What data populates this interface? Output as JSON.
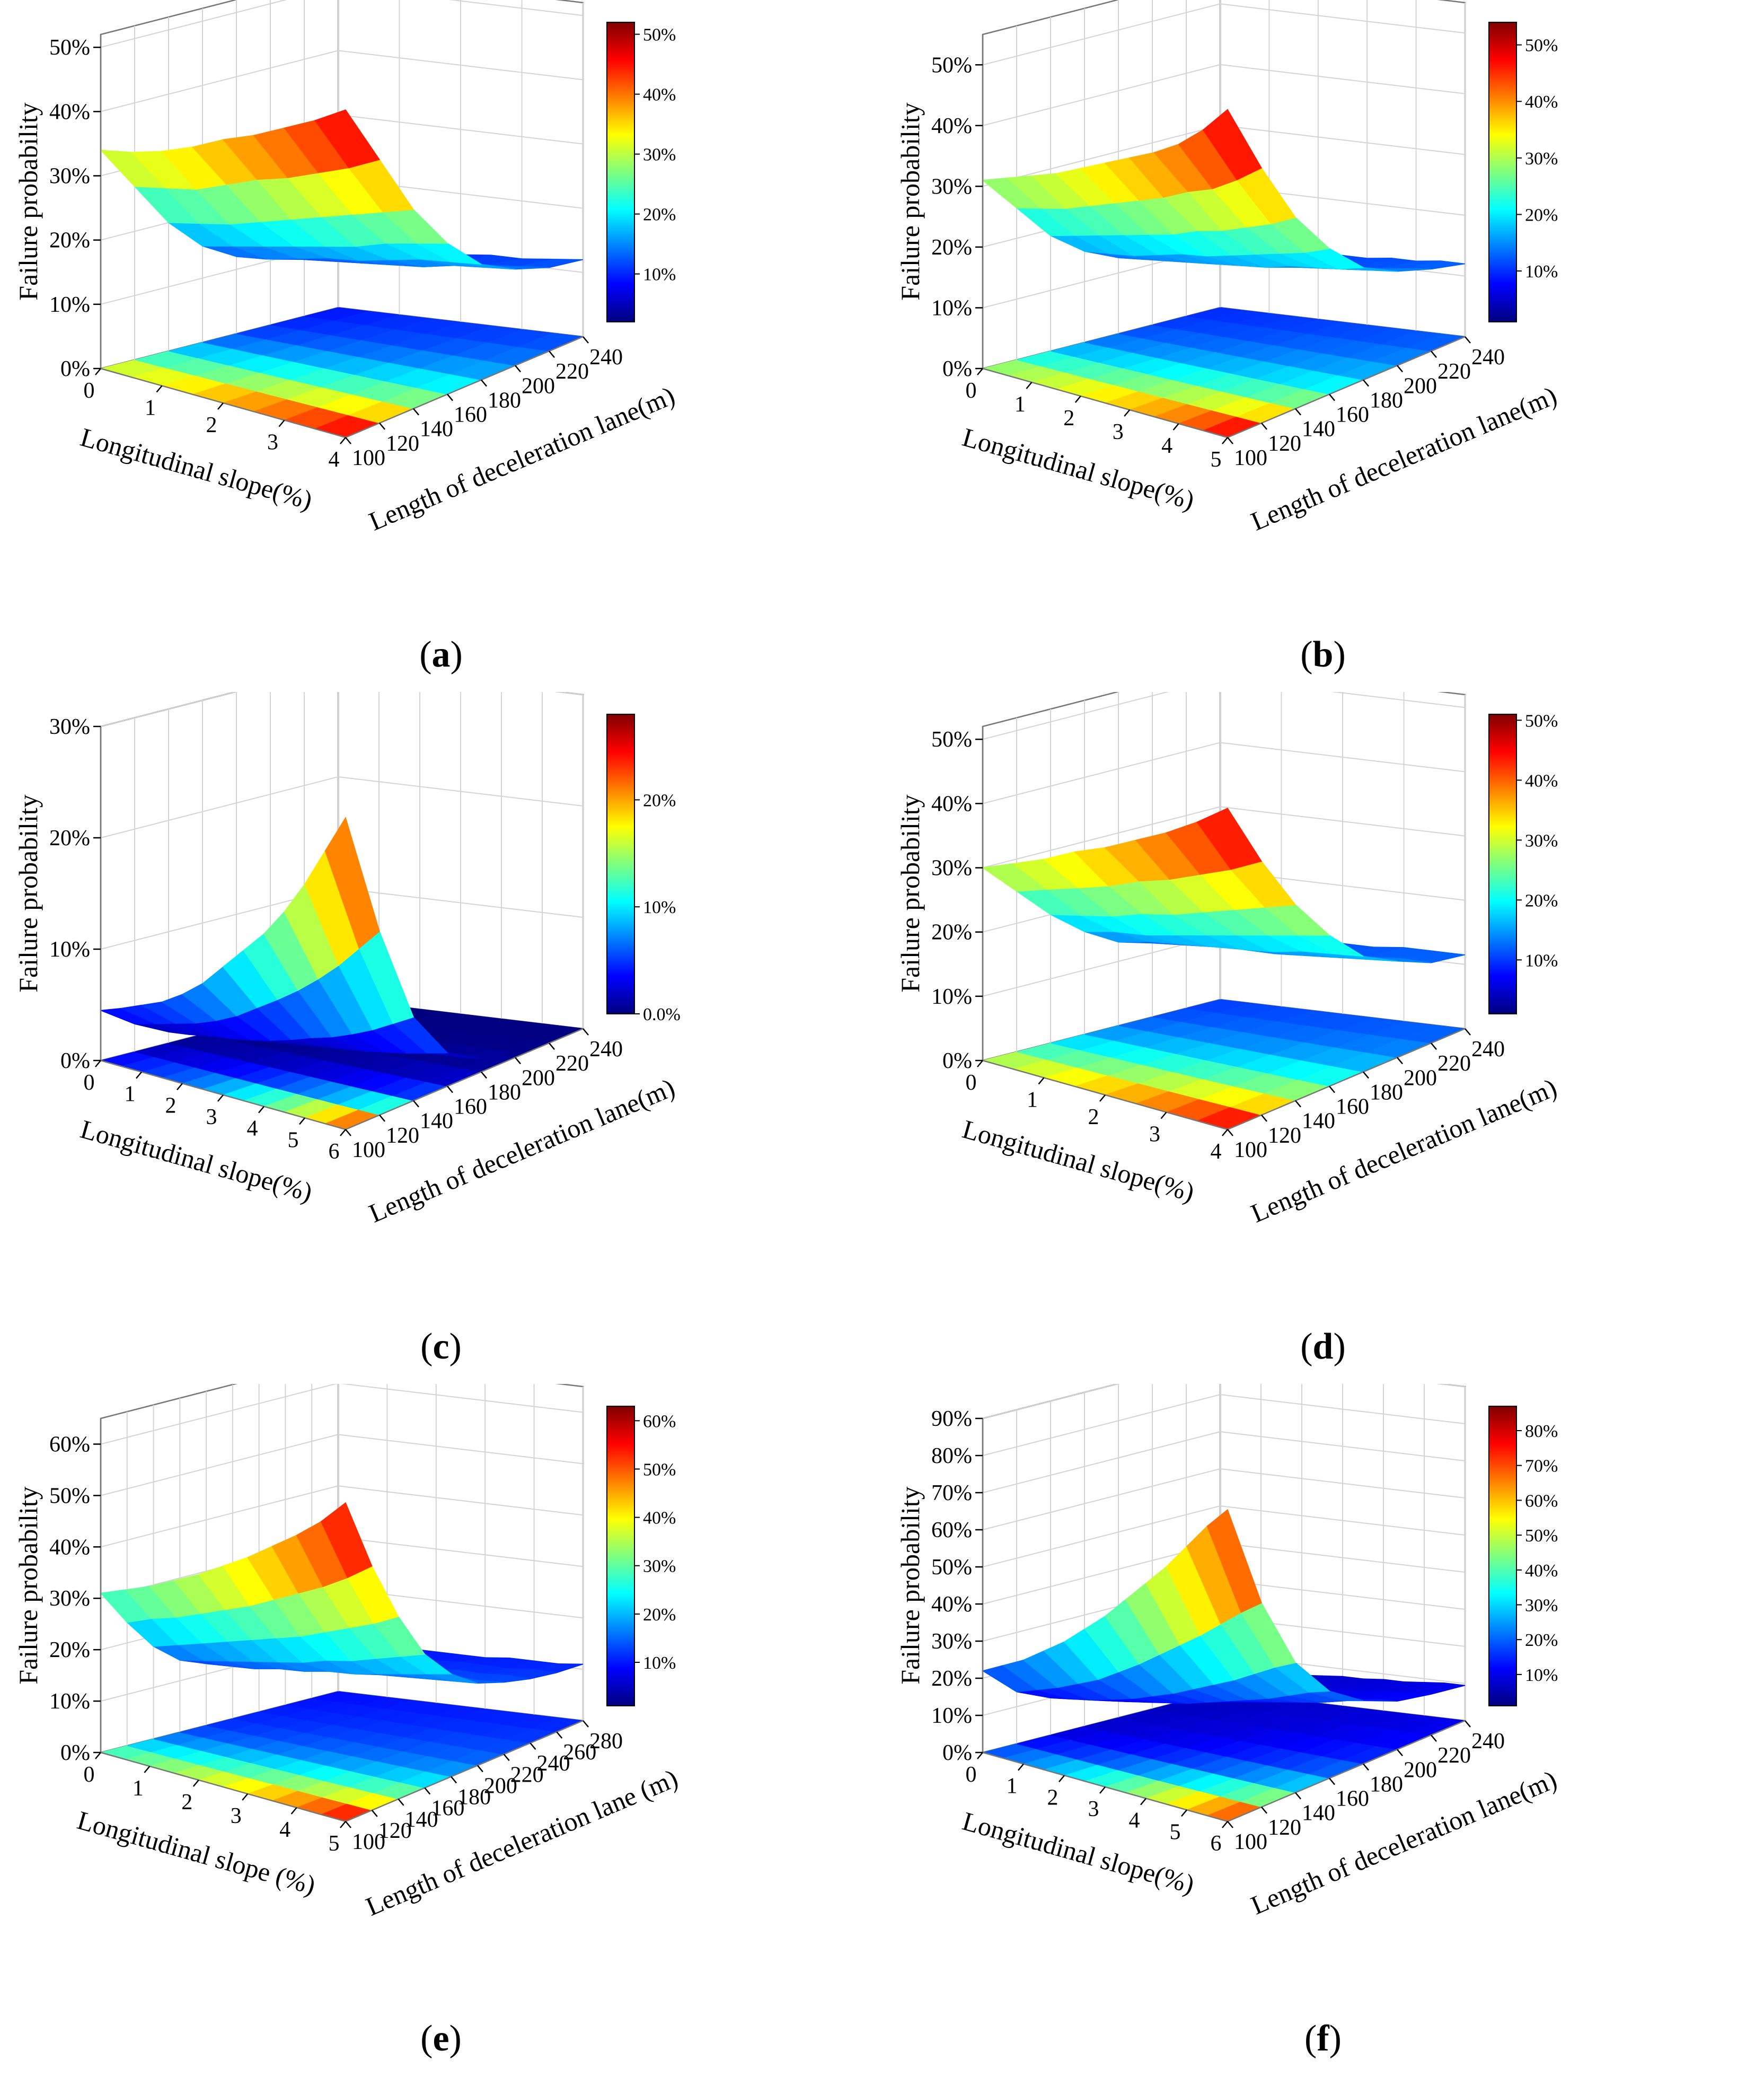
{
  "colors": {
    "colormap": [
      "#00007f",
      "#0000ff",
      "#007fff",
      "#00ffff",
      "#7fff7f",
      "#ffff00",
      "#ff7f00",
      "#ff0000",
      "#7f0000"
    ]
  },
  "chart_data": [
    {
      "type": "surface3d",
      "caption": "a",
      "zlabel": "Failure probability",
      "xlabel": "Longitudinal slope(%)",
      "ylabel": "Length of deceleration lane(m)",
      "slope_ticks": [
        "0",
        "1",
        "2",
        "3",
        "4"
      ],
      "length_ticks": [
        "100",
        "120",
        "140",
        "160",
        "180",
        "200",
        "220",
        "240"
      ],
      "z_ticks": [
        "0%",
        "10%",
        "20%",
        "30%",
        "40%",
        "50%"
      ],
      "zlim": [
        0,
        52
      ],
      "colorbar_ticks": [
        "10%",
        "20%",
        "30%",
        "40%",
        "50%"
      ],
      "colorbar_range": [
        2,
        52
      ],
      "slopes": [
        0,
        0.5,
        1,
        1.5,
        2,
        2.5,
        3,
        3.5,
        4
      ],
      "lengths": [
        100,
        120,
        140,
        160,
        180,
        200,
        220,
        240
      ],
      "z": [
        [
          34,
          27,
          20,
          15,
          12,
          10.5,
          9.5,
          9
        ],
        [
          35,
          28,
          21,
          16,
          12.5,
          11,
          10,
          9.5
        ],
        [
          36.5,
          29,
          22,
          17,
          13.5,
          11.5,
          10.5,
          10
        ],
        [
          38.5,
          31,
          23.5,
          18,
          14.5,
          12,
          11,
          10.5
        ],
        [
          41,
          33,
          25,
          19,
          15,
          12.5,
          11,
          10.5
        ],
        [
          43,
          34.5,
          26.5,
          20,
          16,
          13,
          11.5,
          11
        ],
        [
          45.5,
          36.5,
          28,
          21.5,
          17,
          14,
          12,
          11
        ],
        [
          48,
          38.5,
          29.5,
          22.5,
          17.5,
          14.5,
          12.5,
          11.5
        ],
        [
          51,
          41,
          31,
          23.5,
          18,
          15,
          13,
          12
        ]
      ]
    },
    {
      "type": "surface3d",
      "caption": "b",
      "zlabel": "Failure probability",
      "xlabel": "Longitudinal slope(%)",
      "ylabel": "Length of deceleration lane(m)",
      "slope_ticks": [
        "0",
        "1",
        "2",
        "3",
        "4",
        "5"
      ],
      "length_ticks": [
        "100",
        "120",
        "140",
        "160",
        "180",
        "200",
        "220",
        "240"
      ],
      "z_ticks": [
        "0%",
        "10%",
        "20%",
        "30%",
        "40%",
        "50%"
      ],
      "zlim": [
        0,
        55
      ],
      "colorbar_ticks": [
        "10%",
        "20%",
        "30%",
        "40%",
        "50%"
      ],
      "colorbar_range": [
        1,
        54
      ],
      "slopes": [
        0,
        0.5,
        1,
        1.5,
        2,
        2.5,
        3,
        3.5,
        4,
        4.5,
        5
      ],
      "lengths": [
        100,
        120,
        140,
        160,
        180,
        200,
        220,
        240
      ],
      "z": [
        [
          31,
          25,
          19,
          15,
          12.5,
          11,
          10,
          9.5
        ],
        [
          32.5,
          26,
          20,
          15.5,
          13,
          11.5,
          10.5,
          10
        ],
        [
          34,
          27,
          21,
          16,
          13.5,
          12,
          10.5,
          10
        ],
        [
          35.5,
          28.5,
          22,
          17,
          14,
          12,
          11,
          10.5
        ],
        [
          37.5,
          30,
          23,
          18,
          14.5,
          12.5,
          11,
          10.5
        ],
        [
          39.5,
          31.5,
          24,
          18.5,
          15,
          13,
          11.5,
          11
        ],
        [
          41.5,
          33,
          25.5,
          19.5,
          15.5,
          13.5,
          12,
          11
        ],
        [
          43.5,
          35,
          26.5,
          20.5,
          16.5,
          14,
          12,
          11.5
        ],
        [
          46,
          36.5,
          28,
          21.5,
          17,
          14.5,
          12.5,
          11.5
        ],
        [
          49.5,
          39,
          29.5,
          22.5,
          17.5,
          15,
          13,
          12
        ],
        [
          54,
          42,
          31.5,
          24,
          18.5,
          15.5,
          13.5,
          12
        ]
      ]
    },
    {
      "type": "surface3d",
      "caption": "c",
      "zlabel": "Failure probability",
      "xlabel": "Longitudinal slope(%)",
      "ylabel": "Length of deceleration lane(m)",
      "slope_ticks": [
        "0",
        "1",
        "2",
        "3",
        "4",
        "5",
        "6"
      ],
      "length_ticks": [
        "100",
        "120",
        "140",
        "160",
        "180",
        "200",
        "220",
        "240"
      ],
      "z_ticks": [
        "0%",
        "10%",
        "20%",
        "30%"
      ],
      "zlim": [
        0,
        30
      ],
      "colorbar_ticks": [
        "0.0%",
        "10%",
        "20%"
      ],
      "colorbar_range": [
        0,
        28
      ],
      "slopes": [
        0,
        0.5,
        1,
        1.5,
        2,
        2.5,
        3,
        3.5,
        4,
        4.5,
        5,
        5.5,
        6
      ],
      "lengths": [
        100,
        120,
        140,
        160,
        180,
        200,
        220,
        240
      ],
      "z": [
        [
          4.5,
          2.5,
          1,
          0.4,
          0.2,
          0.1,
          0,
          0
        ],
        [
          5.2,
          3,
          1.2,
          0.5,
          0.2,
          0.1,
          0,
          0
        ],
        [
          6,
          3.5,
          1.5,
          0.6,
          0.2,
          0.1,
          0,
          0
        ],
        [
          6.8,
          4,
          1.7,
          0.7,
          0.3,
          0.1,
          0,
          0
        ],
        [
          8,
          4.7,
          2,
          0.8,
          0.3,
          0.1,
          0,
          0
        ],
        [
          9.5,
          5.6,
          2.4,
          1,
          0.4,
          0.1,
          0,
          0
        ],
        [
          11.5,
          6.8,
          2.9,
          1.2,
          0.5,
          0.2,
          0.1,
          0
        ],
        [
          13.5,
          8,
          3.5,
          1.4,
          0.6,
          0.2,
          0.1,
          0
        ],
        [
          15.5,
          9.3,
          4,
          1.6,
          0.7,
          0.2,
          0.1,
          0
        ],
        [
          18,
          10.8,
          4.7,
          1.9,
          0.8,
          0.3,
          0.1,
          0
        ],
        [
          21,
          12.5,
          5.5,
          2.2,
          0.9,
          0.3,
          0.1,
          0
        ],
        [
          24.5,
          14.5,
          6.5,
          2.6,
          1,
          0.4,
          0.1,
          0
        ],
        [
          28,
          16.5,
          7.5,
          3,
          1.2,
          0.4,
          0.1,
          0
        ]
      ]
    },
    {
      "type": "surface3d",
      "caption": "d",
      "zlabel": "Failure probability",
      "xlabel": "Longitudinal slope(%)",
      "ylabel": "Length of deceleration lane(m)",
      "slope_ticks": [
        "0",
        "1",
        "2",
        "3",
        "4"
      ],
      "length_ticks": [
        "100",
        "120",
        "140",
        "160",
        "180",
        "200",
        "220",
        "240"
      ],
      "z_ticks": [
        "0%",
        "10%",
        "20%",
        "30%",
        "40%",
        "50%"
      ],
      "zlim": [
        0,
        52
      ],
      "colorbar_ticks": [
        "10%",
        "20%",
        "30%",
        "40%",
        "50%"
      ],
      "colorbar_range": [
        1,
        51
      ],
      "slopes": [
        0,
        0.5,
        1,
        1.5,
        2,
        2.5,
        3,
        3.5,
        4
      ],
      "lengths": [
        100,
        120,
        140,
        160,
        180,
        200,
        220,
        240
      ],
      "z": [
        [
          30,
          25,
          20,
          16,
          13,
          11.5,
          10.5,
          10
        ],
        [
          32,
          26.5,
          21,
          17,
          14,
          12,
          11,
          10.5
        ],
        [
          34,
          28,
          22,
          17.5,
          14.5,
          12.5,
          11,
          10.5
        ],
        [
          36.5,
          29.5,
          23.5,
          18.5,
          15,
          13,
          11.5,
          11
        ],
        [
          38.5,
          31.5,
          24.5,
          19.5,
          15.5,
          13,
          11.5,
          11
        ],
        [
          41,
          33,
          26,
          20.5,
          16,
          13.5,
          12,
          11
        ],
        [
          43.5,
          35,
          27.5,
          21.5,
          17,
          14,
          12,
          11.5
        ],
        [
          46.5,
          37,
          29,
          22.5,
          17.5,
          14.5,
          12.5,
          11.5
        ],
        [
          50,
          39.5,
          30.5,
          23.5,
          18,
          15,
          12.5,
          11.5
        ]
      ]
    },
    {
      "type": "surface3d",
      "caption": "e",
      "zlabel": "Failure probability",
      "xlabel": "Longitudinal slope (%)",
      "ylabel": "Length of deceleration lane (m)",
      "slope_ticks": [
        "0",
        "1",
        "2",
        "3",
        "4",
        "5"
      ],
      "length_ticks": [
        "100",
        "120",
        "140",
        "160",
        "180",
        "200",
        "220",
        "240",
        "260",
        "280"
      ],
      "z_ticks": [
        "0%",
        "10%",
        "20%",
        "30%",
        "40%",
        "50%",
        "60%"
      ],
      "zlim": [
        0,
        65
      ],
      "colorbar_ticks": [
        "10%",
        "20%",
        "30%",
        "40%",
        "50%",
        "60%"
      ],
      "colorbar_range": [
        1,
        63
      ],
      "slopes": [
        0,
        0.5,
        1,
        1.5,
        2,
        2.5,
        3,
        3.5,
        4,
        4.5,
        5
      ],
      "lengths": [
        100,
        120,
        140,
        160,
        180,
        200,
        220,
        240,
        260,
        280
      ],
      "z": [
        [
          31,
          24,
          18,
          14,
          12,
          11,
          10.5,
          10,
          9.5,
          9
        ],
        [
          33,
          26,
          19.5,
          15,
          12.5,
          11.5,
          11,
          10.5,
          10,
          9.5
        ],
        [
          35,
          27.5,
          21,
          16,
          13,
          12,
          11,
          10.5,
          10,
          9.5
        ],
        [
          37.5,
          29.5,
          22.5,
          17,
          14,
          12.5,
          11.5,
          11,
          10.5,
          10
        ],
        [
          40,
          31.5,
          24,
          18,
          14.5,
          13,
          12,
          11,
          10.5,
          10
        ],
        [
          43,
          33.5,
          25.5,
          19,
          15.5,
          13.5,
          12,
          11.5,
          10.5,
          10
        ],
        [
          46,
          36,
          27,
          20.5,
          16,
          14,
          12.5,
          11.5,
          11,
          10
        ],
        [
          49.5,
          38.5,
          29,
          21.5,
          17,
          14.5,
          13,
          12,
          11,
          10.5
        ],
        [
          53,
          41,
          31,
          23,
          18,
          15,
          13.5,
          12,
          11,
          10.5
        ],
        [
          57,
          44,
          33,
          24.5,
          19,
          15.5,
          13.5,
          12.5,
          11.5,
          10.5
        ],
        [
          62,
          47.5,
          35.5,
          26,
          20,
          16,
          14,
          12.5,
          11.5,
          11
        ]
      ]
    },
    {
      "type": "surface3d",
      "caption": "f",
      "zlabel": "Failure probability",
      "xlabel": "Longitudinal slope(%)",
      "ylabel": "Length of deceleration lane(m)",
      "slope_ticks": [
        "0",
        "1",
        "2",
        "3",
        "4",
        "5",
        "6"
      ],
      "length_ticks": [
        "100",
        "120",
        "140",
        "160",
        "180",
        "200",
        "220",
        "240"
      ],
      "z_ticks": [
        "0%",
        "10%",
        "20%",
        "30%",
        "40%",
        "50%",
        "60%",
        "70%",
        "80%",
        "90%"
      ],
      "zlim": [
        0,
        90
      ],
      "colorbar_ticks": [
        "10%",
        "20%",
        "30%",
        "40%",
        "50%",
        "60%",
        "70%",
        "80%"
      ],
      "colorbar_range": [
        1,
        87
      ],
      "slopes": [
        0,
        0.5,
        1,
        1.5,
        2,
        2.5,
        3,
        3.5,
        4,
        4.5,
        5,
        5.5,
        6
      ],
      "lengths": [
        100,
        120,
        140,
        160,
        180,
        200,
        220,
        240
      ],
      "z": [
        [
          22,
          14,
          10,
          8,
          7,
          6.5,
          6,
          6
        ],
        [
          25,
          16,
          11,
          8.5,
          7.5,
          7,
          6.5,
          6.5
        ],
        [
          28,
          18,
          12,
          9,
          8,
          7,
          7,
          7
        ],
        [
          32,
          20.5,
          13.5,
          10,
          8.5,
          7.5,
          7,
          7
        ],
        [
          36,
          23,
          15,
          11,
          9,
          8,
          7.5,
          7
        ],
        [
          41,
          26.5,
          17,
          12,
          9.5,
          8.5,
          8,
          7.5
        ],
        [
          46,
          30,
          19,
          13.5,
          10.5,
          9,
          8,
          8
        ],
        [
          52,
          34,
          21.5,
          15,
          11.5,
          9.5,
          8.5,
          8
        ],
        [
          58,
          38,
          24,
          16.5,
          12.5,
          10,
          9,
          8.5
        ],
        [
          64,
          42,
          26.5,
          18,
          13.5,
          11,
          9.5,
          8.5
        ],
        [
          71,
          46.5,
          29.5,
          20,
          14.5,
          11.5,
          10,
          9
        ],
        [
          78,
          51,
          32.5,
          22,
          16,
          12.5,
          10.5,
          9.5
        ],
        [
          84,
          55,
          35,
          23.5,
          17,
          13,
          11,
          9.5
        ]
      ]
    }
  ]
}
